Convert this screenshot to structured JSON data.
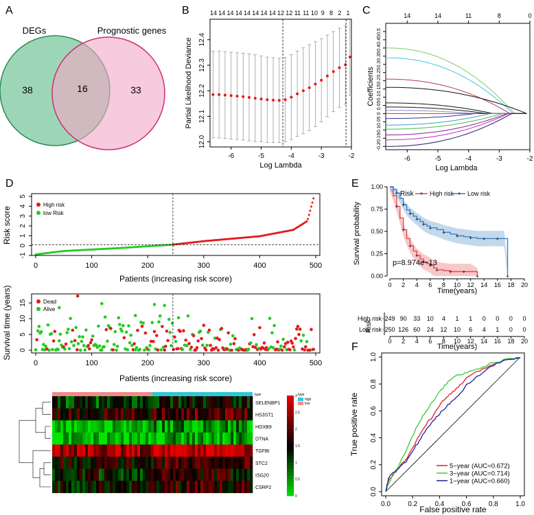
{
  "panels": {
    "A": {
      "label": "A",
      "left_title": "DEGs",
      "right_title": "Prognostic genes",
      "left_only": "38",
      "overlap": "16",
      "right_only": "33"
    },
    "B": {
      "label": "B",
      "top_counts": [
        "14",
        "14",
        "14",
        "14",
        "14",
        "14",
        "14",
        "14",
        "12",
        "12",
        "11",
        "11",
        "10",
        "9",
        "8",
        "2",
        "1"
      ],
      "xlabel": "Log Lambda",
      "ylabel": "Partial Likelihood Deviance",
      "xticks": [
        "-6",
        "-5",
        "-4",
        "-3",
        "-2"
      ],
      "yticks": [
        "12.0",
        "12.1",
        "12.2",
        "12.3",
        "12.4"
      ]
    },
    "C": {
      "label": "C",
      "top_counts": [
        "14",
        "14",
        "11",
        "8",
        "0"
      ],
      "xlabel": "Log Lambda",
      "ylabel": "Coefficients",
      "xticks": [
        "-6",
        "-5",
        "-4",
        "-3",
        "-2"
      ],
      "yticks": [
        "-0.2",
        "-0.15",
        "-0.1",
        "-0.05",
        "0",
        "0.05",
        "0.1",
        "0.15",
        "0.2",
        "0.25",
        "0.3",
        "0.35",
        "0.4",
        "0.45",
        "0.5"
      ]
    },
    "D": {
      "label": "D",
      "risk_ylabel": "Risk score",
      "risk_xlabel": "Patients (increasing risk score)",
      "risk_legend": [
        "High risk",
        "low Risk"
      ],
      "risk_yticks": [
        "-1",
        "0",
        "1",
        "2",
        "3",
        "4",
        "5"
      ],
      "patient_ticks": [
        "0",
        "100",
        "200",
        "300",
        "400",
        "500"
      ],
      "surv_ylabel": "Survival time (years)",
      "surv_xlabel": "Patients (increasing risk score)",
      "surv_legend": [
        "Dead",
        "Alive"
      ],
      "surv_yticks": [
        "0",
        "5",
        "10",
        "15"
      ],
      "genes": [
        "SELENBP1",
        "HS3ST1",
        "HOXB9",
        "DTNA",
        "TGFBI",
        "STC2",
        "ISG20",
        "CSRP2"
      ],
      "heat_legend_title": "type",
      "heat_legend": [
        "high",
        "low"
      ],
      "color_scale_title": "type",
      "color_scale_ticks": [
        "3",
        "2.5",
        "2",
        "1.5",
        "1",
        "0.5",
        "0"
      ]
    },
    "E": {
      "label": "E",
      "legend_title": "Risk",
      "legend": [
        "High risk",
        "Low risk"
      ],
      "pvalue": "p=8.974e−13",
      "ylabel": "Survival probability",
      "xlabel": "Time(years)",
      "yticks": [
        "0.00",
        "0.25",
        "0.50",
        "0.75",
        "1.00"
      ],
      "xticks": [
        "0",
        "2",
        "4",
        "6",
        "8",
        "10",
        "12",
        "14",
        "16",
        "18",
        "20"
      ],
      "table_title": "Risk",
      "table_rows": [
        {
          "label": "High risk",
          "values": [
            "249",
            "90",
            "33",
            "10",
            "4",
            "1",
            "1",
            "0",
            "0",
            "0",
            "0"
          ]
        },
        {
          "label": "Low risk",
          "values": [
            "250",
            "126",
            "60",
            "24",
            "12",
            "10",
            "6",
            "4",
            "1",
            "0",
            "0"
          ]
        }
      ],
      "table_xlabel": "Time(years)"
    },
    "F": {
      "label": "F",
      "xlabel": "False positive rate",
      "ylabel": "True positive rate",
      "ticks": [
        "0.0",
        "0.2",
        "0.4",
        "0.6",
        "0.8",
        "1.0"
      ],
      "legend": [
        "5−year (AUC=0.672)",
        "3−year (AUC=0.714)",
        "1−year (AUC=0.660)"
      ]
    }
  },
  "colors": {
    "high": "#e41a1c",
    "low": "#22cc22",
    "km_high": "#e8484d",
    "km_low": "#3a7fc1",
    "venn_left": "#8ccfaa",
    "venn_right": "#f1a7c6",
    "venn_left_stroke": "#2e8b57",
    "venn_right_stroke": "#cc2f72"
  },
  "chart_data": [
    {
      "panel": "A",
      "type": "venn",
      "sets": [
        "DEGs",
        "Prognostic genes"
      ],
      "values": {
        "DEGs_only": 38,
        "both": 16,
        "Prognostic_only": 33
      }
    },
    {
      "panel": "B",
      "type": "scatter",
      "xlabel": "Log Lambda",
      "ylabel": "Partial Likelihood Deviance",
      "xlim": [
        -6.7,
        -2.0
      ],
      "ylim": [
        11.98,
        12.48
      ],
      "x": [
        -6.6,
        -6.4,
        -6.2,
        -6.0,
        -5.8,
        -5.6,
        -5.4,
        -5.2,
        -5.0,
        -4.8,
        -4.6,
        -4.4,
        -4.2,
        -4.0,
        -3.8,
        -3.6,
        -3.4,
        -3.2,
        -3.0,
        -2.8,
        -2.6,
        -2.4,
        -2.2,
        -2.05
      ],
      "y": [
        12.185,
        12.185,
        12.183,
        12.181,
        12.179,
        12.177,
        12.174,
        12.171,
        12.168,
        12.165,
        12.163,
        12.162,
        12.165,
        12.175,
        12.188,
        12.2,
        12.212,
        12.226,
        12.241,
        12.258,
        12.275,
        12.29,
        12.302,
        12.332
      ],
      "ci_half_width": [
        0.17,
        0.17,
        0.17,
        0.17,
        0.17,
        0.17,
        0.17,
        0.17,
        0.168,
        0.167,
        0.166,
        0.165,
        0.165,
        0.166,
        0.167,
        0.168,
        0.168,
        0.166,
        0.163,
        0.16,
        0.157,
        0.155,
        0.154,
        0.15
      ],
      "vlines": [
        -4.28,
        -2.18
      ]
    },
    {
      "panel": "C",
      "type": "line",
      "xlabel": "Log Lambda",
      "ylabel": "Coefficients",
      "xlim": [
        -6.7,
        -2.0
      ],
      "ylim": [
        -0.22,
        0.55
      ],
      "lines": [
        {
          "color": "#7ccf5a",
          "start": 0.4,
          "zero_at": -2.5
        },
        {
          "color": "#45c4de",
          "start": 0.34,
          "zero_at": -2.55
        },
        {
          "color": "#b03a5a",
          "start": 0.21,
          "zero_at": -2.65
        },
        {
          "color": "#111111",
          "start": 0.16,
          "zero_at": -2.1
        },
        {
          "color": "#111111",
          "start": 0.065,
          "zero_at": -3.2
        },
        {
          "color": "#111111",
          "start": 0.04,
          "zero_at": -3.4
        },
        {
          "color": "#8888cc",
          "start": 0.02,
          "zero_at": -3.8
        },
        {
          "color": "#cc3333",
          "start": 0.0,
          "zero_at": -4.5
        },
        {
          "color": "#333399",
          "start": -0.03,
          "zero_at": -3.8
        },
        {
          "color": "#3aa0c8",
          "start": -0.07,
          "zero_at": -3.3
        },
        {
          "color": "#44bb44",
          "start": -0.095,
          "zero_at": -2.9
        },
        {
          "color": "#882288",
          "start": -0.13,
          "zero_at": -2.75
        },
        {
          "color": "#cc22cc",
          "start": -0.16,
          "zero_at": -2.7
        },
        {
          "color": "#1a1a60",
          "start": -0.2,
          "zero_at": -2.6
        }
      ]
    },
    {
      "panel": "D-risk",
      "type": "scatter",
      "xlabel": "Patients (increasing risk score)",
      "ylabel": "Risk score",
      "xlim": [
        0,
        500
      ],
      "ylim": [
        -1,
        5
      ],
      "cutoff_patient": 245,
      "cutoff_score": 0.1,
      "n_patients": 497,
      "key_points": [
        [
          0,
          -0.9
        ],
        [
          50,
          -0.55
        ],
        [
          150,
          -0.25
        ],
        [
          245,
          0.1
        ],
        [
          300,
          0.45
        ],
        [
          400,
          0.95
        ],
        [
          460,
          1.6
        ],
        [
          485,
          2.5
        ],
        [
          497,
          5.0
        ]
      ]
    },
    {
      "panel": "D-survival",
      "type": "scatter",
      "xlabel": "Patients (increasing risk score)",
      "ylabel": "Survival time (years)",
      "xlim": [
        0,
        500
      ],
      "ylim": [
        0,
        17
      ],
      "cutoff_patient": 245,
      "notable_points": [
        {
          "x": 75,
          "y": 17.2,
          "status": "Dead"
        },
        {
          "x": 42,
          "y": 13.5,
          "status": "Alive"
        },
        {
          "x": 118,
          "y": 14.8,
          "status": "Alive"
        },
        {
          "x": 212,
          "y": 14.5,
          "status": "Alive"
        },
        {
          "x": 230,
          "y": 14.2,
          "status": "Alive"
        },
        {
          "x": 255,
          "y": 10.3,
          "status": "Alive"
        },
        {
          "x": 178,
          "y": 11.0,
          "status": "Alive"
        }
      ]
    },
    {
      "panel": "D-heatmap",
      "type": "heatmap",
      "rows": [
        "SELENBP1",
        "HS3ST1",
        "HOXB9",
        "DTNA",
        "TGFBI",
        "STC2",
        "ISG20",
        "CSRP2"
      ],
      "column_groups": [
        "low",
        "high"
      ],
      "value_range": [
        0,
        3
      ]
    },
    {
      "panel": "E",
      "type": "line",
      "xlabel": "Time(years)",
      "ylabel": "Survival probability",
      "xlim": [
        0,
        20
      ],
      "ylim": [
        0,
        1
      ],
      "series": [
        {
          "name": "High risk",
          "x": [
            0,
            0.5,
            1,
            1.5,
            2,
            2.5,
            3,
            3.5,
            4,
            4.5,
            5,
            5.5,
            6,
            6.5,
            7,
            8,
            9,
            10,
            11,
            12,
            13
          ],
          "y": [
            1,
            0.9,
            0.78,
            0.65,
            0.52,
            0.42,
            0.34,
            0.28,
            0.23,
            0.19,
            0.16,
            0.14,
            0.12,
            0.09,
            0.07,
            0.06,
            0.05,
            0.05,
            0.05,
            0.05,
            0.0
          ]
        },
        {
          "name": "Low risk",
          "x": [
            0,
            0.5,
            1,
            1.5,
            2,
            2.5,
            3,
            3.5,
            4,
            4.5,
            5,
            5.5,
            6,
            7,
            8,
            9,
            10,
            11,
            12,
            13,
            14,
            15,
            16,
            17,
            17.5
          ],
          "y": [
            1,
            0.97,
            0.93,
            0.87,
            0.8,
            0.74,
            0.7,
            0.67,
            0.64,
            0.61,
            0.58,
            0.56,
            0.54,
            0.52,
            0.49,
            0.47,
            0.45,
            0.44,
            0.43,
            0.42,
            0.42,
            0.42,
            0.42,
            0.42,
            0.0
          ]
        }
      ],
      "pvalue": "p=8.974e−13"
    },
    {
      "panel": "F",
      "type": "line",
      "xlabel": "False positive rate",
      "ylabel": "True positive rate",
      "xlim": [
        0,
        1
      ],
      "ylim": [
        0,
        1
      ],
      "series": [
        {
          "name": "5−year (AUC=0.672)",
          "x": [
            0,
            0.02,
            0.05,
            0.1,
            0.15,
            0.2,
            0.25,
            0.3,
            0.35,
            0.4,
            0.45,
            0.5,
            0.55,
            0.6,
            0.7,
            0.8,
            0.9,
            1.0
          ],
          "y": [
            0,
            0.08,
            0.12,
            0.18,
            0.24,
            0.32,
            0.42,
            0.5,
            0.56,
            0.64,
            0.7,
            0.74,
            0.79,
            0.84,
            0.9,
            0.95,
            0.98,
            1.0
          ]
        },
        {
          "name": "3−year (AUC=0.714)",
          "x": [
            0,
            0.02,
            0.05,
            0.1,
            0.15,
            0.2,
            0.25,
            0.3,
            0.35,
            0.4,
            0.45,
            0.5,
            0.55,
            0.6,
            0.7,
            0.8,
            0.9,
            1.0
          ],
          "y": [
            0,
            0.06,
            0.12,
            0.2,
            0.3,
            0.42,
            0.52,
            0.6,
            0.67,
            0.74,
            0.8,
            0.85,
            0.87,
            0.88,
            0.92,
            0.96,
            0.98,
            1.0
          ]
        },
        {
          "name": "1−year (AUC=0.660)",
          "x": [
            0,
            0.02,
            0.05,
            0.1,
            0.15,
            0.2,
            0.25,
            0.3,
            0.35,
            0.4,
            0.45,
            0.5,
            0.55,
            0.6,
            0.7,
            0.8,
            0.9,
            1.0
          ],
          "y": [
            0,
            0.1,
            0.14,
            0.18,
            0.22,
            0.3,
            0.38,
            0.46,
            0.52,
            0.58,
            0.63,
            0.68,
            0.73,
            0.79,
            0.87,
            0.94,
            0.98,
            1.0
          ]
        }
      ]
    }
  ]
}
